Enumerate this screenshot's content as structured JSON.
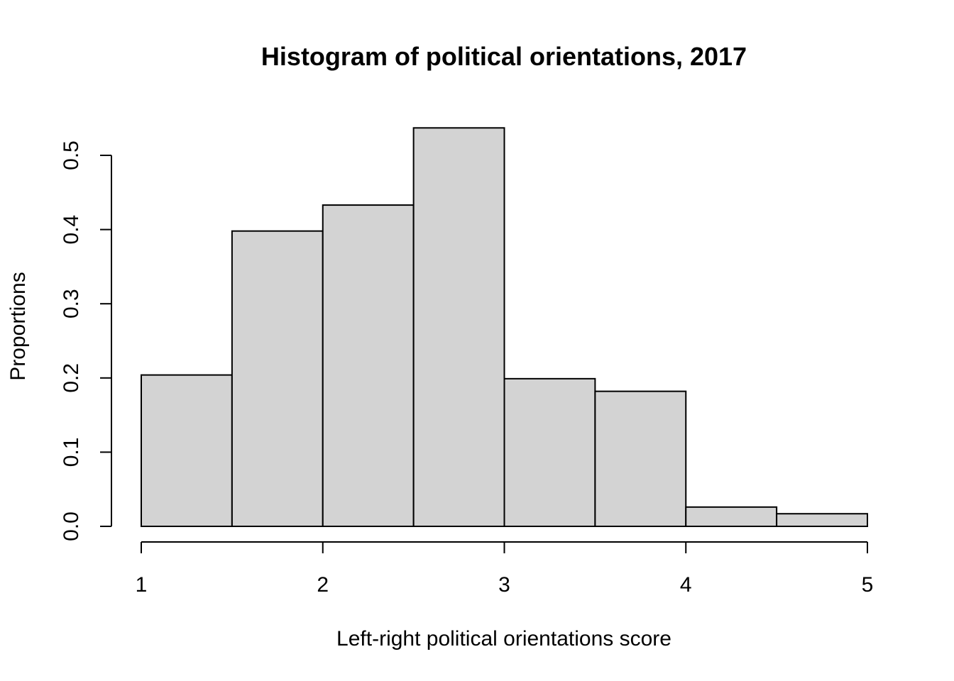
{
  "chart_data": {
    "type": "bar",
    "title": "Histogram of political orientations, 2017",
    "xlabel": "Left-right political orientations score",
    "ylabel": "Proportions",
    "bins": [
      {
        "from": 1.0,
        "to": 1.5,
        "value": 0.204
      },
      {
        "from": 1.5,
        "to": 2.0,
        "value": 0.398
      },
      {
        "from": 2.0,
        "to": 2.5,
        "value": 0.433
      },
      {
        "from": 2.5,
        "to": 3.0,
        "value": 0.537
      },
      {
        "from": 3.0,
        "to": 3.5,
        "value": 0.199
      },
      {
        "from": 3.5,
        "to": 4.0,
        "value": 0.182
      },
      {
        "from": 4.0,
        "to": 4.5,
        "value": 0.026
      },
      {
        "from": 4.5,
        "to": 5.0,
        "value": 0.017
      }
    ],
    "xlim": [
      1,
      5
    ],
    "ylim": [
      0,
      0.5
    ],
    "xticks": [
      "1",
      "2",
      "3",
      "4",
      "5"
    ],
    "yticks": [
      "0.0",
      "0.1",
      "0.2",
      "0.3",
      "0.4",
      "0.5"
    ],
    "bar_fill": "#d3d3d3",
    "bar_stroke": "#000000",
    "grid": false,
    "legend": "none"
  }
}
